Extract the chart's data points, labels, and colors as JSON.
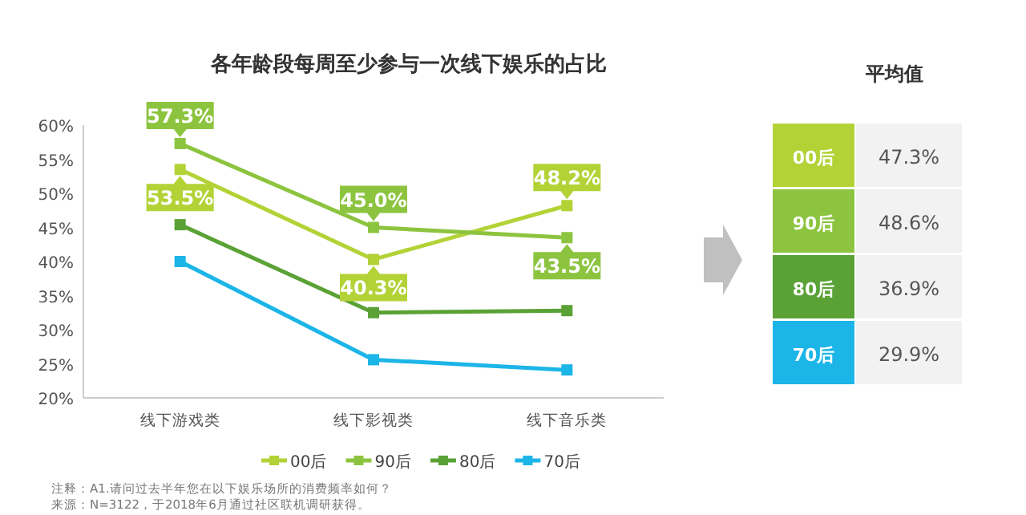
{
  "chart_data": [
    {
      "type": "line",
      "title": "各年龄段每周至少参与一次线下娱乐的占比",
      "categories": [
        "线下游戏类",
        "线下影视类",
        "线下音乐类"
      ],
      "series": [
        {
          "name": "00后",
          "color": "#b3d236",
          "values": [
            53.5,
            40.3,
            48.2
          ],
          "value_labels": [
            "53.5%",
            "40.3%",
            "48.2%"
          ]
        },
        {
          "name": "90后",
          "color": "#8cc43f",
          "values": [
            57.3,
            45.0,
            43.5
          ],
          "value_labels": [
            "57.3%",
            "45.0%",
            "43.5%"
          ]
        },
        {
          "name": "80后",
          "color": "#5aa236",
          "values": [
            45.4,
            32.5,
            32.8
          ]
        },
        {
          "name": "70后",
          "color": "#1cb5e8",
          "values": [
            40.0,
            25.6,
            24.1
          ]
        }
      ],
      "ylim": [
        20,
        60
      ],
      "yticks": [
        {
          "value": 20,
          "label": "20%"
        },
        {
          "value": 25,
          "label": "25%"
        },
        {
          "value": 30,
          "label": "30%"
        },
        {
          "value": 35,
          "label": "35%"
        },
        {
          "value": 40,
          "label": "40%"
        },
        {
          "value": 45,
          "label": "45%"
        },
        {
          "value": 50,
          "label": "50%"
        },
        {
          "value": 55,
          "label": "55%"
        },
        {
          "value": 60,
          "label": "60%"
        }
      ],
      "marker": "square",
      "legend": "bottom",
      "grid": false,
      "annotations": [
        "注释：A1.请问过去半年您在以下娱乐场所的消费频率如何？",
        "来源：N=3122，于2018年6月通过社区联机调研获得。"
      ]
    },
    {
      "type": "other",
      "title": "平均值",
      "categories": [
        "00后",
        "90后",
        "80后",
        "70后"
      ],
      "value_labels": [
        "47.3%",
        "48.6%",
        "36.9%",
        "29.9%"
      ],
      "colors": [
        "#b3d236",
        "#8cc43f",
        "#5aa236",
        "#1cb5e8"
      ]
    }
  ]
}
